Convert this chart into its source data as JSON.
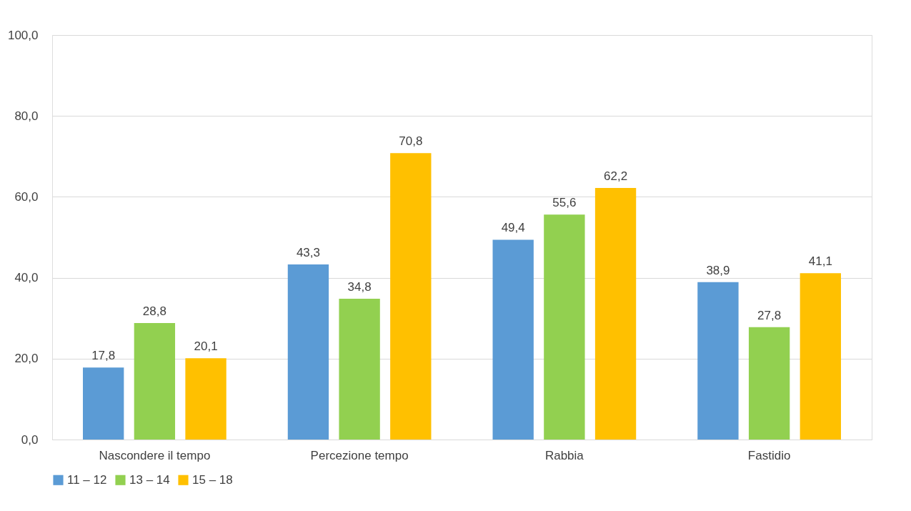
{
  "chart_data": {
    "type": "bar",
    "categories": [
      "Nascondere il tempo",
      "Percezione  tempo",
      "Rabbia",
      "Fastidio"
    ],
    "series": [
      {
        "name": "11 – 12",
        "color": "#5b9bd5",
        "values": [
          17.8,
          43.3,
          49.4,
          38.9
        ],
        "value_labels": [
          "17,8",
          "43,3",
          "49,4",
          "38,9"
        ]
      },
      {
        "name": "13 – 14",
        "color": "#92d050",
        "values": [
          28.8,
          34.8,
          55.6,
          27.8
        ],
        "value_labels": [
          "28,8",
          "34,8",
          "55,6",
          "27,8"
        ]
      },
      {
        "name": "15 – 18",
        "color": "#ffc000",
        "values": [
          20.1,
          70.8,
          62.2,
          41.1
        ],
        "value_labels": [
          "20,1",
          "70,8",
          "62,2",
          "41,1"
        ]
      }
    ],
    "ylim": [
      0,
      100
    ],
    "yticks": [
      {
        "value": 0,
        "label": "0,0"
      },
      {
        "value": 20,
        "label": "20,0"
      },
      {
        "value": 40,
        "label": "40,0"
      },
      {
        "value": 60,
        "label": "60,0"
      },
      {
        "value": 80,
        "label": "80,0"
      },
      {
        "value": 100,
        "label": "100,0"
      }
    ],
    "grid": "y",
    "legend": "bottom"
  }
}
